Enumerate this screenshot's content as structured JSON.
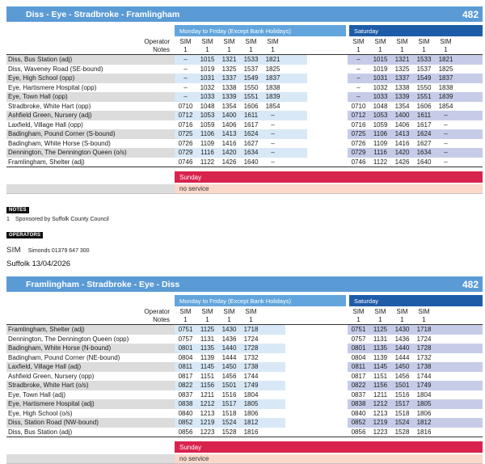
{
  "colors": {
    "route_header_blue": "#5b9bd5",
    "weekday_band_blue": "#62a5dc",
    "saturday_band_blue": "#1e5ca8",
    "weekday_row_highlight": "#d8e8f6",
    "saturday_row_highlight": "#c6cce8",
    "stop_name_row_gray": "#dcdcdc",
    "sunday_band_red": "#d8234d",
    "no_service_pink": "#fad8ca"
  },
  "tables": [
    {
      "title": "Diss - Eye - Stradbroke - Framlingham",
      "route_number": "482",
      "weekday_label": "Monday to Friday (Except Bank Holidays)",
      "saturday_label": "Saturday",
      "operator_label": "Operator",
      "notes_label": "Notes",
      "operators_mf": [
        "SIM",
        "SIM",
        "SIM",
        "SIM",
        "SIM"
      ],
      "operators_sat": [
        "SIM",
        "SIM",
        "SIM",
        "SIM",
        "SIM"
      ],
      "notes_mf": [
        "1",
        "1",
        "1",
        "1",
        "1"
      ],
      "notes_sat": [
        "1",
        "1",
        "1",
        "1",
        "1"
      ],
      "rows": [
        {
          "stop": "Diss, Bus Station (adj)",
          "mf": [
            "–",
            "1015",
            "1321",
            "1533",
            "1821"
          ],
          "sat": [
            "–",
            "1015",
            "1321",
            "1533",
            "1821"
          ]
        },
        {
          "stop": "Diss, Waveney Road (SE-bound)",
          "mf": [
            "–",
            "1019",
            "1325",
            "1537",
            "1825"
          ],
          "sat": [
            "–",
            "1019",
            "1325",
            "1537",
            "1825"
          ]
        },
        {
          "stop": "Eye, High School (opp)",
          "mf": [
            "–",
            "1031",
            "1337",
            "1549",
            "1837"
          ],
          "sat": [
            "–",
            "1031",
            "1337",
            "1549",
            "1837"
          ]
        },
        {
          "stop": "Eye, Hartismere Hospital (opp)",
          "mf": [
            "–",
            "1032",
            "1338",
            "1550",
            "1838"
          ],
          "sat": [
            "–",
            "1032",
            "1338",
            "1550",
            "1838"
          ]
        },
        {
          "stop": "Eye, Town Hall (opp)",
          "mf": [
            "–",
            "1033",
            "1339",
            "1551",
            "1839"
          ],
          "sat": [
            "–",
            "1033",
            "1339",
            "1551",
            "1839"
          ]
        },
        {
          "stop": "Stradbroke, White Hart (opp)",
          "mf": [
            "0710",
            "1048",
            "1354",
            "1606",
            "1854"
          ],
          "sat": [
            "0710",
            "1048",
            "1354",
            "1606",
            "1854"
          ]
        },
        {
          "stop": "Ashfield Green, Nursery (adj)",
          "mf": [
            "0712",
            "1053",
            "1400",
            "1611",
            "–"
          ],
          "sat": [
            "0712",
            "1053",
            "1400",
            "1611",
            "–"
          ]
        },
        {
          "stop": "Laxfield, Village Hall (opp)",
          "mf": [
            "0716",
            "1059",
            "1406",
            "1617",
            "–"
          ],
          "sat": [
            "0716",
            "1059",
            "1406",
            "1617",
            "–"
          ]
        },
        {
          "stop": "Badingham, Pound Corner (S-bound)",
          "mf": [
            "0725",
            "1106",
            "1413",
            "1624",
            "–"
          ],
          "sat": [
            "0725",
            "1106",
            "1413",
            "1624",
            "–"
          ]
        },
        {
          "stop": "Badingham, White Horse (S-bound)",
          "mf": [
            "0726",
            "1109",
            "1416",
            "1627",
            "–"
          ],
          "sat": [
            "0726",
            "1109",
            "1416",
            "1627",
            "–"
          ]
        },
        {
          "stop": "Dennington, The Dennington Queen (o/s)",
          "mf": [
            "0729",
            "1116",
            "1420",
            "1634",
            "–"
          ],
          "sat": [
            "0729",
            "1116",
            "1420",
            "1634",
            "–"
          ]
        },
        {
          "stop": "Framlingham, Shelter (adj)",
          "mf": [
            "0746",
            "1122",
            "1426",
            "1640",
            "–"
          ],
          "sat": [
            "0746",
            "1122",
            "1426",
            "1640",
            "–"
          ]
        }
      ],
      "sunday_label": "Sunday",
      "no_service_label": "no service"
    },
    {
      "title": "Framlingham - Stradbroke - Eye - Diss",
      "route_number": "482",
      "weekday_label": "Monday to Friday (Except Bank Holidays)",
      "saturday_label": "Saturday",
      "operator_label": "Operator",
      "notes_label": "Notes",
      "operators_mf": [
        "SIM",
        "SIM",
        "SIM",
        "SIM"
      ],
      "operators_sat": [
        "SIM",
        "SIM",
        "SIM",
        "SIM"
      ],
      "notes_mf": [
        "1",
        "1",
        "1",
        "1"
      ],
      "notes_sat": [
        "1",
        "1",
        "1",
        "1"
      ],
      "rows": [
        {
          "stop": "Framlingham, Shelter (adj)",
          "mf": [
            "0751",
            "1125",
            "1430",
            "1718"
          ],
          "sat": [
            "0751",
            "1125",
            "1430",
            "1718"
          ]
        },
        {
          "stop": "Dennington, The Dennington Queen (opp)",
          "mf": [
            "0757",
            "1131",
            "1436",
            "1724"
          ],
          "sat": [
            "0757",
            "1131",
            "1436",
            "1724"
          ]
        },
        {
          "stop": "Badingham, White Horse (N-bound)",
          "mf": [
            "0801",
            "1135",
            "1440",
            "1728"
          ],
          "sat": [
            "0801",
            "1135",
            "1440",
            "1728"
          ]
        },
        {
          "stop": "Badingham, Pound Corner (NE-bound)",
          "mf": [
            "0804",
            "1139",
            "1444",
            "1732"
          ],
          "sat": [
            "0804",
            "1139",
            "1444",
            "1732"
          ]
        },
        {
          "stop": "Laxfield, Village Hall (adj)",
          "mf": [
            "0811",
            "1145",
            "1450",
            "1738"
          ],
          "sat": [
            "0811",
            "1145",
            "1450",
            "1738"
          ]
        },
        {
          "stop": "Ashfield Green, Nursery (opp)",
          "mf": [
            "0817",
            "1151",
            "1456",
            "1744"
          ],
          "sat": [
            "0817",
            "1151",
            "1456",
            "1744"
          ]
        },
        {
          "stop": "Stradbroke, White Hart (o/s)",
          "mf": [
            "0822",
            "1156",
            "1501",
            "1749"
          ],
          "sat": [
            "0822",
            "1156",
            "1501",
            "1749"
          ]
        },
        {
          "stop": "Eye, Town Hall (adj)",
          "mf": [
            "0837",
            "1211",
            "1516",
            "1804"
          ],
          "sat": [
            "0837",
            "1211",
            "1516",
            "1804"
          ]
        },
        {
          "stop": "Eye, Hartismere Hospital (adj)",
          "mf": [
            "0838",
            "1212",
            "1517",
            "1805"
          ],
          "sat": [
            "0838",
            "1212",
            "1517",
            "1805"
          ]
        },
        {
          "stop": "Eye, High School (o/s)",
          "mf": [
            "0840",
            "1213",
            "1518",
            "1806"
          ],
          "sat": [
            "0840",
            "1213",
            "1518",
            "1806"
          ]
        },
        {
          "stop": "Diss, Station Road (NW-bound)",
          "mf": [
            "0852",
            "1219",
            "1524",
            "1812"
          ],
          "sat": [
            "0852",
            "1219",
            "1524",
            "1812"
          ]
        },
        {
          "stop": "Diss, Bus Station (adj)",
          "mf": [
            "0856",
            "1223",
            "1528",
            "1816"
          ],
          "sat": [
            "0856",
            "1223",
            "1528",
            "1816"
          ]
        }
      ],
      "sunday_label": "Sunday",
      "no_service_label": "no service"
    }
  ],
  "notes_section": {
    "notes_heading": "NOTES",
    "note_number": "1",
    "note_text": "Sponsored by Suffolk County Council",
    "operators_heading": "OPERATORS",
    "operator_code": "SIM",
    "operator_detail": "Simonds 01379 647 300",
    "footer": "Suffolk 13/04/2026"
  }
}
